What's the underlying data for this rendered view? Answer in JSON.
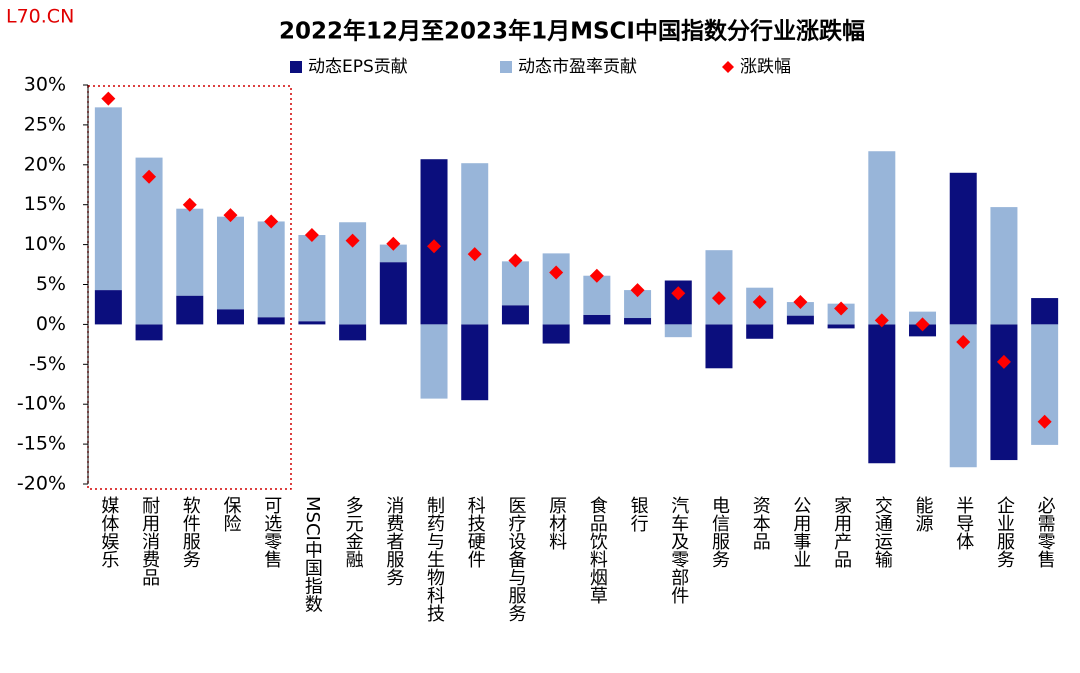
{
  "watermark": "L70.CN",
  "chart_data": {
    "type": "bar",
    "stacked": true,
    "title": "2022年12月至2023年1月MSCI中国指数分行业涨跌幅",
    "categories": [
      "媒体娱乐",
      "耐用消费品",
      "软件服务",
      "保险",
      "可选零售",
      "MSCI中国指数",
      "多元金融",
      "消费者服务",
      "制药与生物科技",
      "科技硬件",
      "医疗设备与服务",
      "原材料",
      "食品饮料烟草",
      "银行",
      "汽车及零部件",
      "电信服务",
      "资本品",
      "公用事业",
      "家用产品",
      "交通运输",
      "能源",
      "半导体",
      "企业服务",
      "必需零售"
    ],
    "series": [
      {
        "name": "动态EPS贡献",
        "color": "#0b0e7d",
        "values": [
          4.3,
          -2.0,
          3.6,
          1.9,
          0.9,
          0.4,
          -2.0,
          7.8,
          20.7,
          -9.5,
          2.4,
          -2.4,
          1.2,
          0.8,
          5.5,
          -5.5,
          -1.8,
          1.1,
          -0.5,
          -17.4,
          -1.5,
          19.0,
          -17.0,
          3.3
        ]
      },
      {
        "name": "动态市盈率贡献",
        "color": "#98b5d9",
        "values": [
          22.9,
          20.9,
          10.9,
          11.6,
          12.0,
          10.8,
          12.8,
          2.2,
          -9.3,
          20.2,
          5.5,
          8.9,
          4.9,
          3.5,
          -1.6,
          9.3,
          4.6,
          1.7,
          2.6,
          21.7,
          1.6,
          -17.9,
          14.7,
          -15.1
        ]
      },
      {
        "name": "涨跌幅",
        "type": "scatter",
        "marker": "diamond",
        "color": "#ff0000",
        "values": [
          28.3,
          18.5,
          15.0,
          13.7,
          12.9,
          11.2,
          10.5,
          10.1,
          9.8,
          8.8,
          8.0,
          6.5,
          6.1,
          4.3,
          3.9,
          3.3,
          2.8,
          2.8,
          2.0,
          0.5,
          0.0,
          -2.2,
          -4.7,
          -12.2
        ]
      }
    ],
    "ylim": [
      -20,
      30
    ],
    "yticks": [
      {
        "value": -20,
        "label": "-20%"
      },
      {
        "value": -15,
        "label": "-15%"
      },
      {
        "value": -10,
        "label": "-10%"
      },
      {
        "value": -5,
        "label": "-5%"
      },
      {
        "value": 0,
        "label": "0%"
      },
      {
        "value": 5,
        "label": "5%"
      },
      {
        "value": 10,
        "label": "10%"
      },
      {
        "value": 15,
        "label": "15%"
      },
      {
        "value": 20,
        "label": "20%"
      },
      {
        "value": 25,
        "label": "25%"
      },
      {
        "value": 30,
        "label": "30%"
      }
    ],
    "legend": "top"
  }
}
